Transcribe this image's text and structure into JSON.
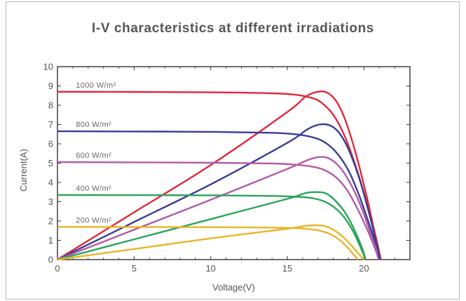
{
  "chart_data": {
    "type": "line",
    "title": "I-V characteristics at different irradiations",
    "xlabel": "Voltage(V)",
    "ylabel": "Current(A)",
    "xlim": [
      0,
      23
    ],
    "ylim": [
      0,
      10
    ],
    "xticks": [
      0,
      5,
      10,
      15,
      20
    ],
    "yticks": [
      0,
      1,
      2,
      3,
      4,
      5,
      6,
      7,
      8,
      9,
      10
    ],
    "grid": false,
    "legend": "none",
    "series": [
      {
        "name": "1000 W/m²",
        "color": "#e0283a",
        "iv": {
          "x": [
            0,
            5,
            10,
            14,
            15.5,
            16.5,
            17.2,
            18,
            18.8,
            19.6,
            20.3,
            20.8,
            21.1
          ],
          "y": [
            8.7,
            8.69,
            8.67,
            8.62,
            8.55,
            8.4,
            8.15,
            7.5,
            6.3,
            4.5,
            2.6,
            1.1,
            0
          ]
        },
        "pv": {
          "x": [
            0,
            5,
            10,
            15,
            16.2,
            17,
            17.6,
            18.2,
            18.8,
            19.5,
            20.2,
            20.7,
            21.1
          ],
          "y": [
            0,
            2.45,
            4.9,
            7.65,
            8.45,
            8.7,
            8.65,
            8.2,
            7.2,
            5.4,
            3.2,
            1.4,
            0
          ]
        }
      },
      {
        "name": "800 W/m²",
        "color": "#3a3c96",
        "iv": {
          "x": [
            0,
            5,
            10,
            14,
            15.5,
            16.6,
            17.4,
            18.2,
            19,
            19.7,
            20.4,
            20.9,
            21.05
          ],
          "y": [
            6.65,
            6.64,
            6.62,
            6.57,
            6.5,
            6.35,
            6.1,
            5.55,
            4.6,
            3.3,
            1.7,
            0.5,
            0
          ]
        },
        "pv": {
          "x": [
            0,
            5,
            10,
            15,
            16.3,
            17.1,
            17.8,
            18.4,
            19,
            19.7,
            20.3,
            20.8,
            21.05
          ],
          "y": [
            0,
            1.95,
            3.9,
            6.05,
            6.75,
            7.0,
            6.95,
            6.55,
            5.7,
            4.2,
            2.5,
            0.9,
            0
          ]
        }
      },
      {
        "name": "600 W/m²",
        "color": "#b15aa8",
        "iv": {
          "x": [
            0,
            5,
            10,
            14,
            15.5,
            16.6,
            17.4,
            18.2,
            18.9,
            19.6,
            20.3,
            20.8,
            20.95
          ],
          "y": [
            5.05,
            5.04,
            5.02,
            4.98,
            4.92,
            4.82,
            4.65,
            4.25,
            3.6,
            2.6,
            1.4,
            0.4,
            0
          ]
        },
        "pv": {
          "x": [
            0,
            5,
            10,
            15,
            16.3,
            17.1,
            17.7,
            18.3,
            18.9,
            19.6,
            20.2,
            20.7,
            20.95
          ],
          "y": [
            0,
            1.55,
            3.1,
            4.7,
            5.15,
            5.32,
            5.25,
            4.9,
            4.25,
            3.15,
            1.9,
            0.7,
            0
          ]
        }
      },
      {
        "name": "400 W/m²",
        "color": "#28a55a",
        "iv": {
          "x": [
            0,
            5,
            10,
            14,
            15.5,
            16.5,
            17.3,
            18,
            18.7,
            19.3,
            19.8,
            20.1
          ],
          "y": [
            3.35,
            3.34,
            3.33,
            3.3,
            3.26,
            3.2,
            3.05,
            2.75,
            2.2,
            1.45,
            0.6,
            0
          ]
        },
        "pv": {
          "x": [
            0,
            5,
            10,
            15,
            16.2,
            17,
            17.6,
            18.2,
            18.8,
            19.4,
            19.9,
            20.1
          ],
          "y": [
            0,
            1.05,
            2.1,
            3.15,
            3.45,
            3.5,
            3.4,
            3.0,
            2.4,
            1.5,
            0.55,
            0
          ]
        }
      },
      {
        "name": "200 W/m²",
        "color": "#e8b52a",
        "iv": {
          "x": [
            0,
            5,
            10,
            14,
            15.5,
            16.4,
            17.1,
            17.8,
            18.4,
            18.9,
            19.3,
            19.6
          ],
          "y": [
            1.7,
            1.69,
            1.68,
            1.66,
            1.63,
            1.58,
            1.5,
            1.32,
            1.02,
            0.65,
            0.28,
            0
          ]
        },
        "pv": {
          "x": [
            0,
            5,
            10,
            15,
            16.2,
            17,
            17.6,
            18.1,
            18.6,
            19.1,
            19.6,
            20.0
          ],
          "y": [
            0,
            0.55,
            1.1,
            1.6,
            1.75,
            1.78,
            1.7,
            1.5,
            1.2,
            0.8,
            0.35,
            0
          ]
        }
      }
    ]
  }
}
